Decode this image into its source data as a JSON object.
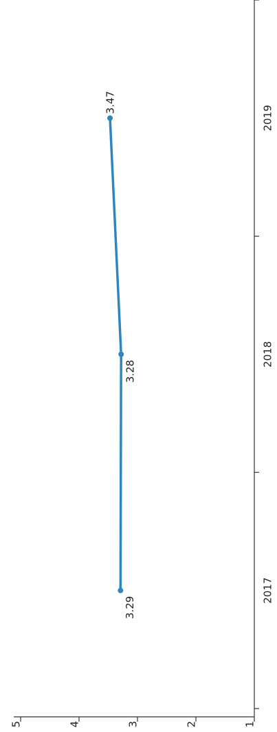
{
  "chart_data": {
    "type": "line",
    "categories": [
      "2017",
      "2018",
      "2019"
    ],
    "values": [
      3.29,
      3.28,
      3.47
    ],
    "value_labels": [
      "3.29",
      "3.28",
      "3.47"
    ],
    "color": "#2e86c1",
    "ylim": [
      1,
      5
    ],
    "yticks": [
      1,
      2,
      3,
      4,
      5
    ]
  }
}
